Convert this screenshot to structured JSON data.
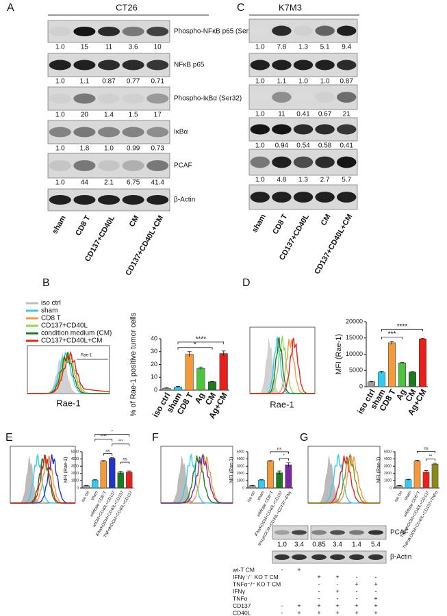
{
  "blots": [
    {
      "panel": "A",
      "title": "CT26",
      "lanes": [
        "sham",
        "CD8 T",
        "CD137+CD40L",
        "CM",
        "CD137+CD40L+CM"
      ],
      "rows": [
        {
          "label": "Phospho-NFκB p65 (Ser536)",
          "quant": [
            "1.0",
            "15",
            "11",
            "3.6",
            "10"
          ]
        },
        {
          "label": "NFκB p65",
          "quant": [
            "1.0",
            "1.1",
            "0.87",
            "0.77",
            "0.71"
          ]
        },
        {
          "label": "Phospho-IκBα (Ser32)",
          "quant": [
            "1.0",
            "20",
            "1.4",
            "1.5",
            "17"
          ]
        },
        {
          "label": "IκBα",
          "quant": [
            "1.0",
            "1.8",
            "1.0",
            "0.99",
            "0.73"
          ]
        },
        {
          "label": "PCAF",
          "quant": [
            "1.0",
            "44",
            "2.1",
            "6.75",
            "41.4"
          ]
        },
        {
          "label": "β-Actin"
        }
      ]
    },
    {
      "panel": "C",
      "title": "K7M3",
      "lanes": [
        "sham",
        "CD8 T",
        "CD137+CD40L",
        "CM",
        "CD137+CD40L+CM"
      ],
      "quant": [
        [
          "1.0",
          "7.8",
          "1.3",
          "5.1",
          "9.4"
        ],
        [
          "1.0",
          "1.1",
          "1.0",
          "1.0",
          "0.87"
        ],
        [
          "1.0",
          "11",
          "0.41",
          "0.67",
          "21"
        ],
        [
          "1.0",
          "0.94",
          "0.54",
          "0.58",
          "0.41"
        ],
        [
          "1.0",
          "4.8",
          "1.3",
          "2.7",
          "5.7"
        ]
      ]
    }
  ],
  "histograms": {
    "B": {
      "xlabel": "Rae-1",
      "gate_label": "Rae-1",
      "legend": [
        {
          "name": "iso ctrl",
          "color": "#bdbdbd"
        },
        {
          "name": "sham",
          "color": "#33ccee"
        },
        {
          "name": "CD8 T",
          "color": "#f39a3c"
        },
        {
          "name": "CD137+CD40L",
          "color": "#8fd45a"
        },
        {
          "name": "condition medium (CM)",
          "color": "#1e7a1e"
        },
        {
          "name": "CD137+CD40L+CM",
          "color": "#e8201c"
        }
      ]
    },
    "D": {
      "xlabel": "Rae-1"
    }
  },
  "chart_data": [
    {
      "type": "bar",
      "panel": "B",
      "y_label": "% of Rae-1  positive tumor cells",
      "categories": [
        "iso ctrl",
        "sham",
        "CD8 T",
        "Ag",
        "CM",
        "Ag+CM"
      ],
      "values": [
        1.5,
        2.5,
        28,
        17,
        6.5,
        28.5
      ],
      "errors": [
        0.3,
        0.4,
        2,
        1,
        0.3,
        2
      ],
      "colors": [
        "#9e9e9e",
        "#33ccee",
        "#f39a3c",
        "#4cc43c",
        "#1e7a1e",
        "#e8201c"
      ],
      "ylim": [
        0,
        40
      ],
      "yticks": [
        0,
        10,
        20,
        30,
        40
      ],
      "annotations": [
        {
          "label": "*",
          "from": "sham",
          "to": "CM"
        },
        {
          "label": "****",
          "from": "sham",
          "to": "Ag+CM"
        }
      ]
    },
    {
      "type": "bar",
      "panel": "D",
      "y_label": "MFI (Rae-1)",
      "categories": [
        "iso ctrl",
        "sham",
        "CD8 T",
        "Ag",
        "CM",
        "Ag+CM"
      ],
      "values": [
        1500,
        4500,
        13500,
        7300,
        4500,
        14700
      ],
      "errors": [
        100,
        200,
        500,
        150,
        150,
        200
      ],
      "colors": [
        "#9e9e9e",
        "#33ccee",
        "#f39a3c",
        "#4cc43c",
        "#1e7a1e",
        "#e8201c"
      ],
      "ylim": [
        0,
        20000
      ],
      "yticks": [
        0,
        5000,
        10000,
        15000,
        20000
      ],
      "annotations": [
        {
          "label": "***",
          "from": "sham",
          "to": "Ag"
        },
        {
          "label": "****",
          "from": "sham",
          "to": "Ag+CM"
        }
      ]
    },
    {
      "type": "bar",
      "panel": "E",
      "y_label": "MFI (Rae-1)",
      "categories": [
        "iso ctrl",
        "sham",
        "wildtype CD8⁺T",
        "wtCM+CD40L+CD137",
        "IFNγKOCM+CD40L+CD137",
        "TNFαKOCM+CD40L+CD137"
      ],
      "values": [
        300,
        1100,
        3700,
        4100,
        2100,
        2200
      ],
      "errors": [
        50,
        60,
        80,
        80,
        200,
        150
      ],
      "colors": [
        "#9e9e9e",
        "#33ccee",
        "#f39a3c",
        "#2233cc",
        "#1e7a1e",
        "#e8201c"
      ],
      "ylim": [
        0,
        5000
      ],
      "yticks": [
        0,
        1000,
        2000,
        3000,
        4000,
        5000
      ],
      "annotations": [
        {
          "label": "ns",
          "from": "wildtype CD8⁺T",
          "to": "wtCM+CD40L+CD137"
        },
        {
          "label": "ns",
          "from": "IFNγKOCM+CD40L+CD137",
          "to": "TNFαKOCM+CD40L+CD137"
        },
        {
          "label": "***",
          "from": "wtCM+CD40L+CD137",
          "to": "TNFαKOCM+CD40L+CD137"
        },
        {
          "label": "****",
          "from": "sham",
          "to": "wtCM+CD40L+CD137"
        },
        {
          "label": "*",
          "from": "sham",
          "to": "TNFαKOCM+CD40L+CD137"
        }
      ]
    },
    {
      "type": "bar",
      "panel": "F",
      "y_label": "MFI (Rae-1)",
      "categories": [
        "iso ctrl",
        "sham",
        "wildtype CD8⁺T",
        "IFNγKOCM+CD40L+CD137",
        "IFNγKOCM+CD40L+CD137+IFNγ"
      ],
      "values": [
        300,
        1100,
        3700,
        2100,
        3200
      ],
      "errors": [
        50,
        60,
        80,
        250,
        300
      ],
      "colors": [
        "#9e9e9e",
        "#33ccee",
        "#f39a3c",
        "#1e7a1e",
        "#7a2a9a"
      ],
      "ylim": [
        0,
        5000
      ],
      "yticks": [
        0,
        1000,
        2000,
        3000,
        4000,
        5000
      ],
      "annotations": [
        {
          "label": "*",
          "from": "IFNγKOCM+CD40L+CD137",
          "to": "IFNγKOCM+CD40L+CD137+IFNγ"
        },
        {
          "label": "ns",
          "from": "wildtype CD8⁺T",
          "to": "IFNγKOCM+CD40L+CD137+IFNγ"
        }
      ]
    },
    {
      "type": "bar",
      "panel": "G",
      "y_label": "MFI (Rae-1)",
      "categories": [
        "iso ctrl",
        "sham",
        "wildtype CD8⁺T",
        "TNFαKOCM+CD40L+CD137",
        "TNFαKOCM+CD40L+CD137+TNFα"
      ],
      "values": [
        300,
        1150,
        3750,
        2200,
        3300
      ],
      "errors": [
        50,
        60,
        80,
        200,
        120
      ],
      "colors": [
        "#9e9e9e",
        "#33ccee",
        "#f39a3c",
        "#e8201c",
        "#8a8a1a"
      ],
      "ylim": [
        0,
        5000
      ],
      "yticks": [
        0,
        1000,
        2000,
        3000,
        4000,
        5000
      ],
      "annotations": [
        {
          "label": "**",
          "from": "TNFαKOCM+CD40L+CD137",
          "to": "TNFαKOCM+CD40L+CD137+TNFα"
        },
        {
          "label": "ns",
          "from": "wildtype CD8⁺T",
          "to": "TNFαKOCM+CD40L+CD137+TNFα"
        }
      ]
    }
  ],
  "bottom_blot": {
    "targets": [
      "PCAF",
      "β-Actin"
    ],
    "quant_left": [
      "1.0",
      "3.4"
    ],
    "quant_right": [
      "0.85",
      "3.4",
      "1.4",
      "5.4"
    ],
    "conditions": [
      {
        "label": "wt-T CM",
        "cells": [
          "-",
          "+",
          null,
          null,
          null,
          null
        ]
      },
      {
        "label": "IFNγ⁻/⁻ KO T CM",
        "cells": [
          null,
          null,
          "+",
          "+",
          "-",
          "-"
        ]
      },
      {
        "label": "TNFα⁻/⁻ KO T CM",
        "cells": [
          null,
          null,
          "-",
          "-",
          "+",
          "+"
        ]
      },
      {
        "label": "IFNγ",
        "cells": [
          null,
          null,
          "-",
          "+",
          "-",
          "-"
        ]
      },
      {
        "label": "TNFα",
        "cells": [
          null,
          null,
          "-",
          "-",
          "-",
          "+"
        ]
      },
      {
        "label": "CD137",
        "cells": [
          "-",
          "+",
          "+",
          "+",
          "+",
          "+"
        ]
      },
      {
        "label": "CD40L",
        "cells": [
          "-",
          "+",
          "+",
          "+",
          "+",
          "+"
        ]
      }
    ]
  }
}
